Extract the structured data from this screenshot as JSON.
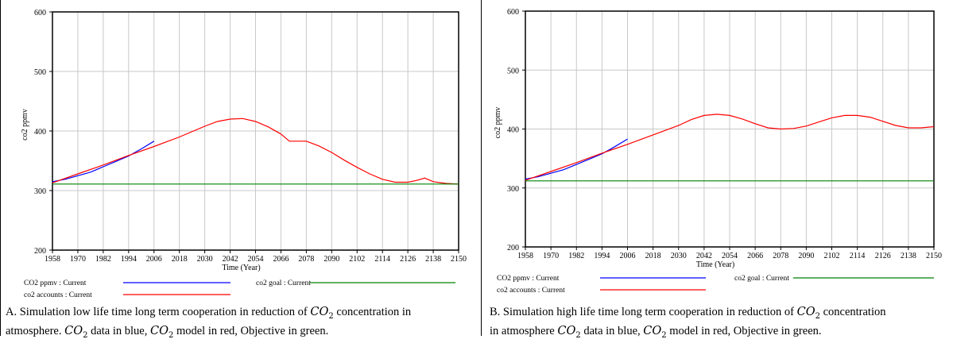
{
  "chart_data": [
    {
      "type": "line",
      "xlabel": "Time (Year)",
      "ylabel": "co2 ppmv",
      "xlim": [
        1958,
        2150
      ],
      "ylim": [
        200,
        600
      ],
      "xticks": [
        1958,
        1970,
        1982,
        1994,
        2006,
        2018,
        2030,
        2042,
        2054,
        2066,
        2078,
        2090,
        2102,
        2114,
        2126,
        2138,
        2150
      ],
      "yticks": [
        200,
        300,
        400,
        500,
        600
      ],
      "grid": true,
      "legend_position": "bottom",
      "series": [
        {
          "name": "CO2 ppmv : Current",
          "color": "#0000ff",
          "x": [
            1958,
            1964,
            1970,
            1976,
            1982,
            1988,
            1994,
            2000,
            2006
          ],
          "y": [
            315,
            319,
            325,
            331,
            340,
            349,
            358,
            370,
            383
          ]
        },
        {
          "name": "co2 accounts : Current",
          "color": "#ff0000",
          "x": [
            1958,
            1970,
            1982,
            1994,
            2006,
            2018,
            2030,
            2036,
            2042,
            2048,
            2054,
            2060,
            2066,
            2070,
            2078,
            2084,
            2090,
            2096,
            2102,
            2108,
            2114,
            2120,
            2126,
            2130,
            2134,
            2138,
            2144,
            2150
          ],
          "y": [
            313,
            328,
            343,
            359,
            374,
            390,
            408,
            416,
            420,
            421,
            416,
            407,
            395,
            383,
            383,
            375,
            364,
            351,
            339,
            328,
            319,
            314,
            314,
            317,
            321,
            315,
            312,
            311
          ]
        },
        {
          "name": "co2 goal : Current",
          "color": "#008000",
          "x": [
            1958,
            2150
          ],
          "y": [
            311,
            311
          ]
        }
      ]
    },
    {
      "type": "line",
      "xlabel": "Time (Year)",
      "ylabel": "co2 ppmv",
      "xlim": [
        1958,
        2150
      ],
      "ylim": [
        200,
        600
      ],
      "xticks": [
        1958,
        1970,
        1982,
        1994,
        2006,
        2018,
        2030,
        2042,
        2054,
        2066,
        2078,
        2090,
        2102,
        2114,
        2126,
        2138,
        2150
      ],
      "yticks": [
        200,
        300,
        400,
        500,
        600
      ],
      "grid": true,
      "legend_position": "bottom",
      "series": [
        {
          "name": "CO2 ppmv : Current",
          "color": "#0000ff",
          "x": [
            1958,
            1964,
            1970,
            1976,
            1982,
            1988,
            1994,
            2000,
            2006
          ],
          "y": [
            315,
            319,
            325,
            331,
            340,
            349,
            358,
            370,
            383
          ]
        },
        {
          "name": "co2 accounts : Current",
          "color": "#ff0000",
          "x": [
            1958,
            1970,
            1982,
            1994,
            2006,
            2018,
            2030,
            2036,
            2042,
            2048,
            2054,
            2060,
            2066,
            2072,
            2078,
            2084,
            2090,
            2096,
            2102,
            2108,
            2114,
            2120,
            2126,
            2132,
            2138,
            2144,
            2150
          ],
          "y": [
            313,
            328,
            343,
            359,
            374,
            390,
            406,
            416,
            423,
            425,
            423,
            417,
            409,
            402,
            400,
            401,
            405,
            412,
            419,
            423,
            423,
            420,
            413,
            406,
            402,
            402,
            404
          ]
        },
        {
          "name": "co2 goal : Current",
          "color": "#008000",
          "x": [
            1958,
            2150
          ],
          "y": [
            312,
            312
          ]
        }
      ]
    }
  ],
  "captions": [
    {
      "part1": "A. Simulation low life time long term cooperation in reduction of ",
      "co2": "CO",
      "sub": "2",
      "part2": " concentration in",
      "part3": "atmosphere. ",
      "part4": " data in blue, ",
      "part5": " model in red, Objective in green."
    },
    {
      "part1": "B. Simulation high life time long term cooperation in reduction of ",
      "co2": "CO",
      "sub": "2",
      "part2": " concentration",
      "part3": "in atmosphere ",
      "part4": " data in blue, ",
      "part5": " model in red, Objective in green."
    }
  ]
}
